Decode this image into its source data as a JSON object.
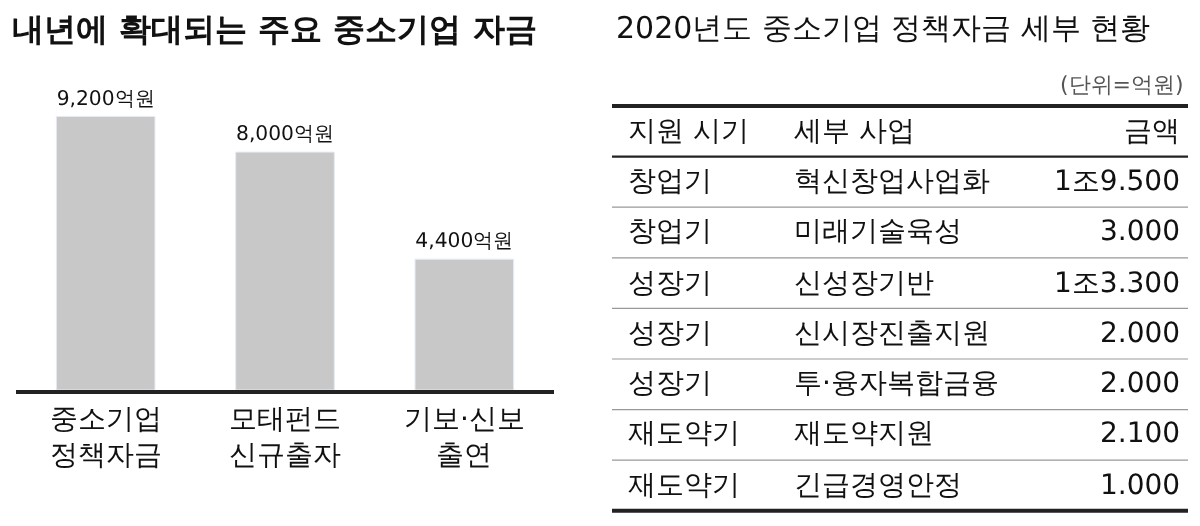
{
  "chart_data": [
    {
      "type": "bar",
      "title": "내년에 확대되는 주요 중소기업 자금",
      "categories": [
        "중소기업 정책자금",
        "모태펀드 신규출자",
        "기보·신보 출연"
      ],
      "values": [
        9200,
        8000,
        4400
      ],
      "value_labels": [
        "9,200억원",
        "8,000억원",
        "4,400억원"
      ],
      "color": "#c8c8c8",
      "tick_labels": "x"
    },
    {
      "type": "other",
      "title": "2020년도 중소기업 정책자금 세부 현황",
      "annotations": [
        "(단위=억원)"
      ],
      "categories": [
        "지원 시기",
        "세부 사업",
        "금액"
      ],
      "cell_labels": [
        [
          "창업기",
          "혁신창업사업화",
          "1조9.500"
        ],
        [
          "창업기",
          "미래기술육성",
          "3.000"
        ],
        [
          "성장기",
          "신성장기반",
          "1조3.300"
        ],
        [
          "성장기",
          "신시장진출지원",
          "2.000"
        ],
        [
          "성장기",
          "투·융자복합금융",
          "2.000"
        ],
        [
          "재도약기",
          "재도약지원",
          "2.100"
        ],
        [
          "재도약기",
          "긴급경영안정",
          "1.000"
        ]
      ]
    }
  ]
}
